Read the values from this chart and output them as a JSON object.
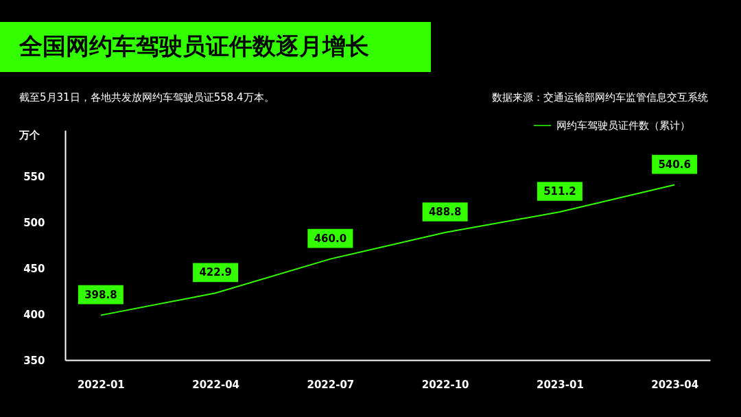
{
  "chart_data": {
    "type": "line",
    "title": "全国网约车驾驶员证件数逐月增长",
    "subtitle": "截至5月31日，各地共发放网约车驾驶员证558.4万本。",
    "annotations": [
      "数据来源：交通运输部网约车监管信息交互系统"
    ],
    "ylabel": "万个",
    "categories": [
      "2022-01",
      "2022-04",
      "2022-07",
      "2022-10",
      "2023-01",
      "2023-04"
    ],
    "series": [
      {
        "name": "网约车驾驶员证件数（累计）",
        "color": "#33ff00",
        "values": [
          398.8,
          422.9,
          460.0,
          488.8,
          511.2,
          540.6
        ],
        "value_labels": [
          "398.8",
          "422.9",
          "460.0",
          "488.8",
          "511.2",
          "540.6"
        ]
      }
    ],
    "ylim": [
      350,
      600
    ],
    "yticks": [
      350,
      400,
      450,
      500,
      550
    ],
    "grid": false,
    "legend": "top right",
    "marker": "none",
    "line_style": "solid"
  }
}
